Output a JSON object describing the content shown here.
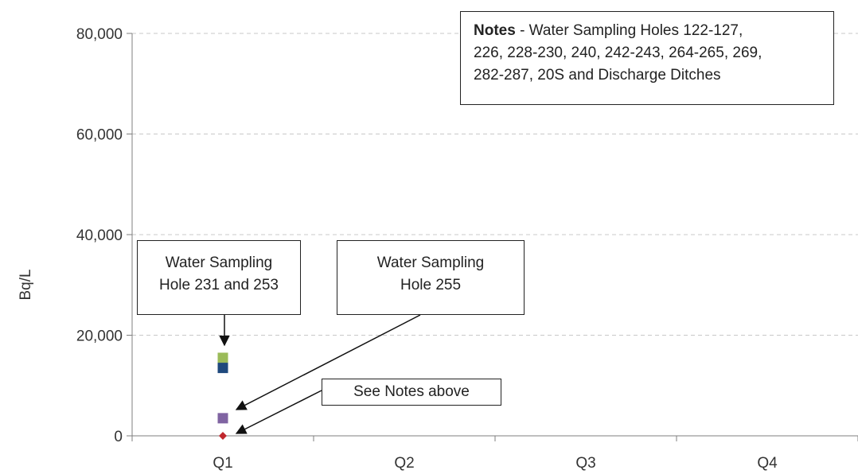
{
  "chart_data": {
    "type": "scatter",
    "categories": [
      "Q1",
      "Q2",
      "Q3",
      "Q4"
    ],
    "ylabel": "Bq/L",
    "ylim": [
      0,
      80000
    ],
    "yticks": [
      0,
      20000,
      40000,
      60000,
      80000
    ],
    "ytick_labels": [
      "0",
      "20,000",
      "40,000",
      "60,000",
      "80,000"
    ],
    "grid": "horizontal dashed",
    "series": [
      {
        "category": "Q1",
        "value": 15500,
        "marker": "square",
        "color": "#9bbb59"
      },
      {
        "category": "Q1",
        "value": 13500,
        "marker": "square",
        "color": "#1f497d"
      },
      {
        "category": "Q1",
        "value": 3500,
        "marker": "square",
        "color": "#8064a2"
      },
      {
        "category": "Q1",
        "value": 0,
        "marker": "diamond",
        "color": "#c0272d"
      }
    ]
  },
  "annotations": {
    "notes": {
      "bold": "Notes",
      "lines": [
        "- Water Sampling Holes 122-127,",
        "226, 228-230, 240, 242-243, 264-265, 269,",
        "282-287, 20S and Discharge Ditches"
      ]
    },
    "hole_231_253": [
      "Water Sampling",
      "Hole 231 and 253"
    ],
    "hole_255": [
      "Water Sampling",
      "Hole 255"
    ],
    "see_notes": "See Notes above"
  }
}
